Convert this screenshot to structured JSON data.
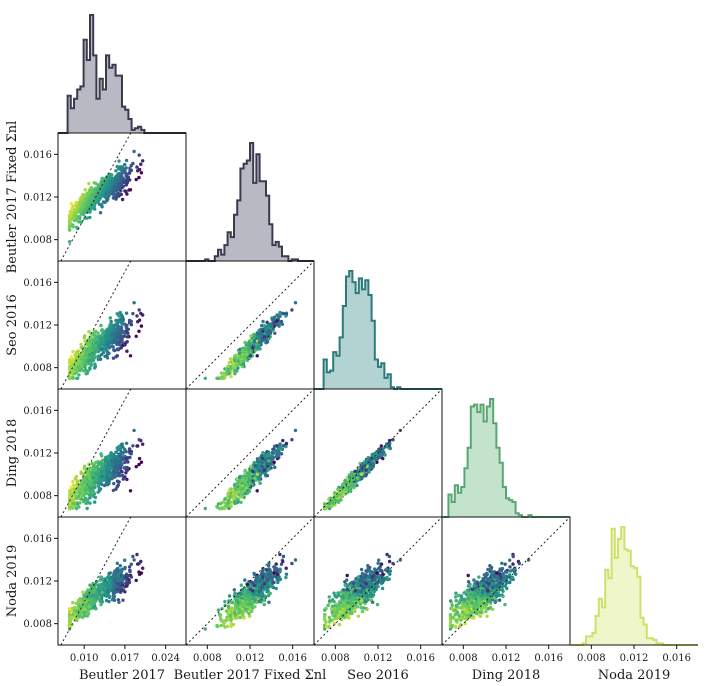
{
  "chart_data": {
    "type": "corner",
    "variables": [
      {
        "label": "Beutler 2017",
        "color": "#3b3b4f",
        "fill": "#b9b9c3"
      },
      {
        "label": "Beutler 2017 Fixed Σnl",
        "color": "#3b3b4f",
        "fill": "#b9b9c3"
      },
      {
        "label": "Seo 2016",
        "color": "#2b7b7e",
        "fill": "#b3d3d3"
      },
      {
        "label": "Ding 2018",
        "color": "#5aa673",
        "fill": "#c4e3cd"
      },
      {
        "label": "Noda 2019",
        "color": "#cfe16a",
        "fill": "#eff6c9"
      }
    ],
    "x_ranges": [
      [
        0.0055,
        0.0275
      ],
      [
        0.006,
        0.018
      ],
      [
        0.006,
        0.018
      ],
      [
        0.006,
        0.018
      ],
      [
        0.006,
        0.018
      ]
    ],
    "y_range": [
      0.006,
      0.018
    ],
    "x_ticks": [
      {
        "values": [
          0.01,
          0.017,
          0.024
        ],
        "labels": [
          "0.010",
          "0.017",
          "0.024"
        ]
      },
      {
        "values": [
          0.008,
          0.012,
          0.016
        ],
        "labels": [
          "0.008",
          "0.012",
          "0.016"
        ]
      },
      {
        "values": [
          0.008,
          0.012,
          0.016
        ],
        "labels": [
          "0.008",
          "0.012",
          "0.016"
        ]
      },
      {
        "values": [
          0.008,
          0.012,
          0.016
        ],
        "labels": [
          "0.008",
          "0.012",
          "0.016"
        ]
      },
      {
        "values": [
          0.008,
          0.012,
          0.016
        ],
        "labels": [
          "0.008",
          "0.012",
          "0.016"
        ]
      }
    ],
    "y_ticks": {
      "values": [
        0.008,
        0.012,
        0.016
      ],
      "labels": [
        "0.008",
        "0.012",
        "0.016"
      ]
    },
    "histogram_peaks": [
      0.0115,
      0.0122,
      0.0102,
      0.0098,
      0.0108
    ],
    "diagonal_reference": "dotted y = x",
    "point_colormap": "viridis",
    "correlation_note": "points coloured from yellow (low Beutler 2017) to purple (high Beutler 2017)"
  }
}
